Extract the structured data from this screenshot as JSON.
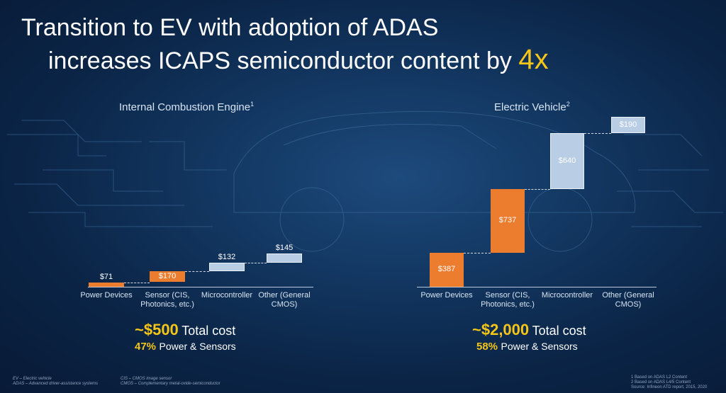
{
  "title": {
    "line1": "Transition to EV with adoption of ADAS",
    "line2": "increases ICAPS semiconductor content by",
    "highlight": "4x"
  },
  "colors": {
    "orange": "#ec7d2e",
    "light_blue": "#b9cde4",
    "gold": "#f5c518"
  },
  "chart_data": [
    {
      "type": "bar",
      "subtype": "waterfall",
      "title": "Internal Combustion Engine",
      "title_sup": "1",
      "categories": [
        "Power Devices",
        "Sensor (CIS, Photonics, etc.)",
        "Microcontroller",
        "Other (General CMOS)"
      ],
      "category_lines": [
        [
          "Power Devices"
        ],
        [
          "Sensor (CIS,",
          "Photonics, etc.)"
        ],
        [
          "Microcontroller"
        ],
        [
          "Other (General",
          "CMOS)"
        ]
      ],
      "values": [
        71,
        170,
        132,
        145
      ],
      "labels": [
        "$71",
        "$170",
        "$132",
        "$145"
      ],
      "bar_colors": [
        "orange",
        "orange",
        "light_blue",
        "light_blue"
      ],
      "total": {
        "big": "~$500",
        "text": "Total cost"
      },
      "share": {
        "pct": "47%",
        "text": "Power & Sensors"
      }
    },
    {
      "type": "bar",
      "subtype": "waterfall",
      "title": "Electric Vehicle",
      "title_sup": "2",
      "categories": [
        "Power Devices",
        "Sensor (CIS, Photonics, etc.)",
        "Microcontroller",
        "Other (General CMOS)"
      ],
      "category_lines": [
        [
          "Power Devices"
        ],
        [
          "Sensor (CIS,",
          "Photonics, etc.)"
        ],
        [
          "Microcontroller"
        ],
        [
          "Other (General",
          "CMOS)"
        ]
      ],
      "values": [
        387,
        737,
        640,
        190
      ],
      "labels": [
        "$387",
        "$737",
        "$640",
        "$190"
      ],
      "bar_colors": [
        "orange",
        "orange",
        "light_blue",
        "light_blue"
      ],
      "total": {
        "big": "~$2,000",
        "text": "Total cost"
      },
      "share": {
        "pct": "58%",
        "text": "Power & Sensors"
      }
    }
  ],
  "footnotes": {
    "left": [
      "EV – Electric vehicle",
      "ADAS – Advanced driver-assistance systems"
    ],
    "middle": [
      "CIS – CMOS image sensor",
      "CMOS – Complementary metal-oxide-semiconductor"
    ],
    "right": [
      "1 Based on ADAS L2 Content",
      "2 Based on ADAS L4/5 Content",
      "Source: Infineon ATD report, 2015, 2020"
    ]
  }
}
